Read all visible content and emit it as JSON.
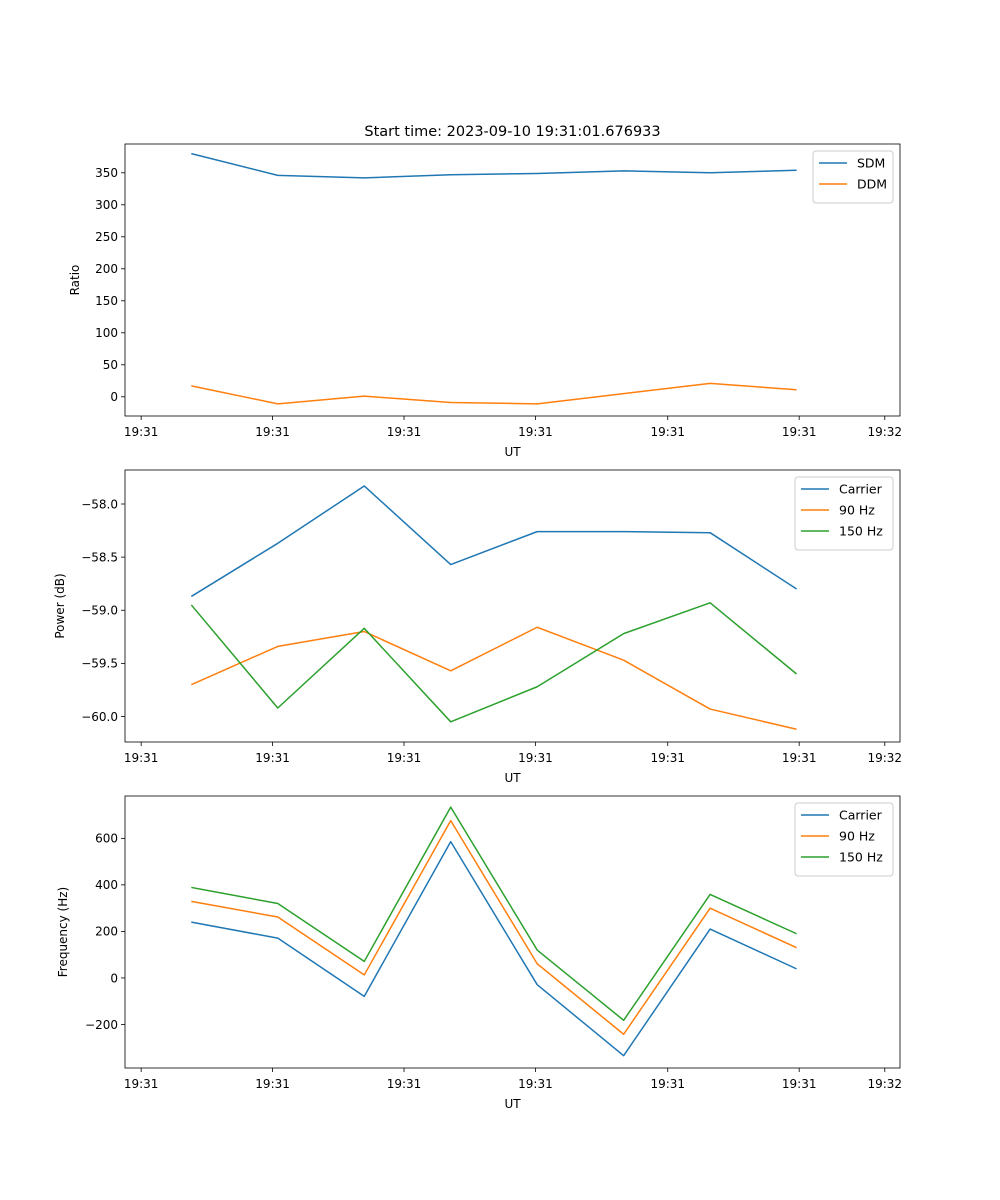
{
  "figure_title": "Start time: 2023-09-10 19:31:01.676933",
  "colors": {
    "blue": "#1f77b4",
    "orange": "#ff7f0e",
    "green": "#2ca02c"
  },
  "chart_data": [
    {
      "type": "line",
      "id": "ratio",
      "title": "Start time: 2023-09-10 19:31:01.676933",
      "xlabel": "UT",
      "ylabel": "Ratio",
      "x": [
        1,
        2,
        3,
        4,
        5,
        6,
        7,
        8
      ],
      "xlim": [
        0.233,
        9.196
      ],
      "ylim": [
        -30,
        395
      ],
      "x_ticks": [
        0.42,
        1.94,
        3.46,
        4.98,
        6.51,
        8.03,
        9.02
      ],
      "x_tick_labels": [
        "19:31",
        "19:31",
        "19:31",
        "19:31",
        "19:31",
        "19:31",
        "19:32"
      ],
      "y_ticks": [
        0,
        50,
        100,
        150,
        200,
        250,
        300,
        350
      ],
      "y_tick_labels": [
        "0",
        "50",
        "100",
        "150",
        "200",
        "250",
        "300",
        "350"
      ],
      "legend_position": "top-right",
      "series": [
        {
          "name": "SDM",
          "color": "#1f77b4",
          "values": [
            380,
            346,
            342,
            347,
            349,
            353,
            350,
            354
          ]
        },
        {
          "name": "DDM",
          "color": "#ff7f0e",
          "values": [
            17,
            -11,
            1,
            -9,
            -11,
            5,
            21,
            11
          ]
        }
      ]
    },
    {
      "type": "line",
      "id": "power",
      "xlabel": "UT",
      "ylabel": "Power (dB)",
      "x": [
        1,
        2,
        3,
        4,
        5,
        6,
        7,
        8
      ],
      "xlim": [
        0.233,
        9.196
      ],
      "ylim": [
        -60.24,
        -57.68
      ],
      "x_ticks": [
        0.42,
        1.94,
        3.46,
        4.98,
        6.51,
        8.03,
        9.02
      ],
      "x_tick_labels": [
        "19:31",
        "19:31",
        "19:31",
        "19:31",
        "19:31",
        "19:31",
        "19:32"
      ],
      "y_ticks": [
        -58.0,
        -58.5,
        -59.0,
        -59.5,
        -60.0
      ],
      "y_tick_labels": [
        "−58.0",
        "−58.5",
        "−59.0",
        "−59.5",
        "−60.0"
      ],
      "legend_position": "top-right",
      "series": [
        {
          "name": "Carrier",
          "color": "#1f77b4",
          "values": [
            -58.87,
            -58.37,
            -57.83,
            -58.57,
            -58.26,
            -58.26,
            -58.27,
            -58.8
          ]
        },
        {
          "name": "90 Hz",
          "color": "#ff7f0e",
          "values": [
            -59.7,
            -59.34,
            -59.2,
            -59.57,
            -59.16,
            -59.47,
            -59.93,
            -60.12
          ]
        },
        {
          "name": "150 Hz",
          "color": "#2ca02c",
          "values": [
            -58.95,
            -59.92,
            -59.17,
            -60.05,
            -59.72,
            -59.22,
            -58.93,
            -59.6
          ]
        }
      ]
    },
    {
      "type": "line",
      "id": "frequency",
      "xlabel": "UT",
      "ylabel": "Frequency (Hz)",
      "x": [
        1,
        2,
        3,
        4,
        5,
        6,
        7,
        8
      ],
      "xlim": [
        0.233,
        9.196
      ],
      "ylim": [
        -387,
        782
      ],
      "x_ticks": [
        0.42,
        1.94,
        3.46,
        4.98,
        6.51,
        8.03,
        9.02
      ],
      "x_tick_labels": [
        "19:31",
        "19:31",
        "19:31",
        "19:31",
        "19:31",
        "19:31",
        "19:32"
      ],
      "y_ticks": [
        -200,
        0,
        200,
        400,
        600
      ],
      "y_tick_labels": [
        "−200",
        "0",
        "200",
        "400",
        "600"
      ],
      "legend_position": "top-right",
      "series": [
        {
          "name": "Carrier",
          "color": "#1f77b4",
          "values": [
            240,
            171,
            -79,
            586,
            -29,
            -334,
            210,
            39
          ]
        },
        {
          "name": "90 Hz",
          "color": "#ff7f0e",
          "values": [
            329,
            262,
            13,
            676,
            61,
            -242,
            300,
            130
          ]
        },
        {
          "name": "150 Hz",
          "color": "#2ca02c",
          "values": [
            389,
            320,
            71,
            734,
            120,
            -182,
            359,
            190
          ]
        }
      ]
    }
  ]
}
